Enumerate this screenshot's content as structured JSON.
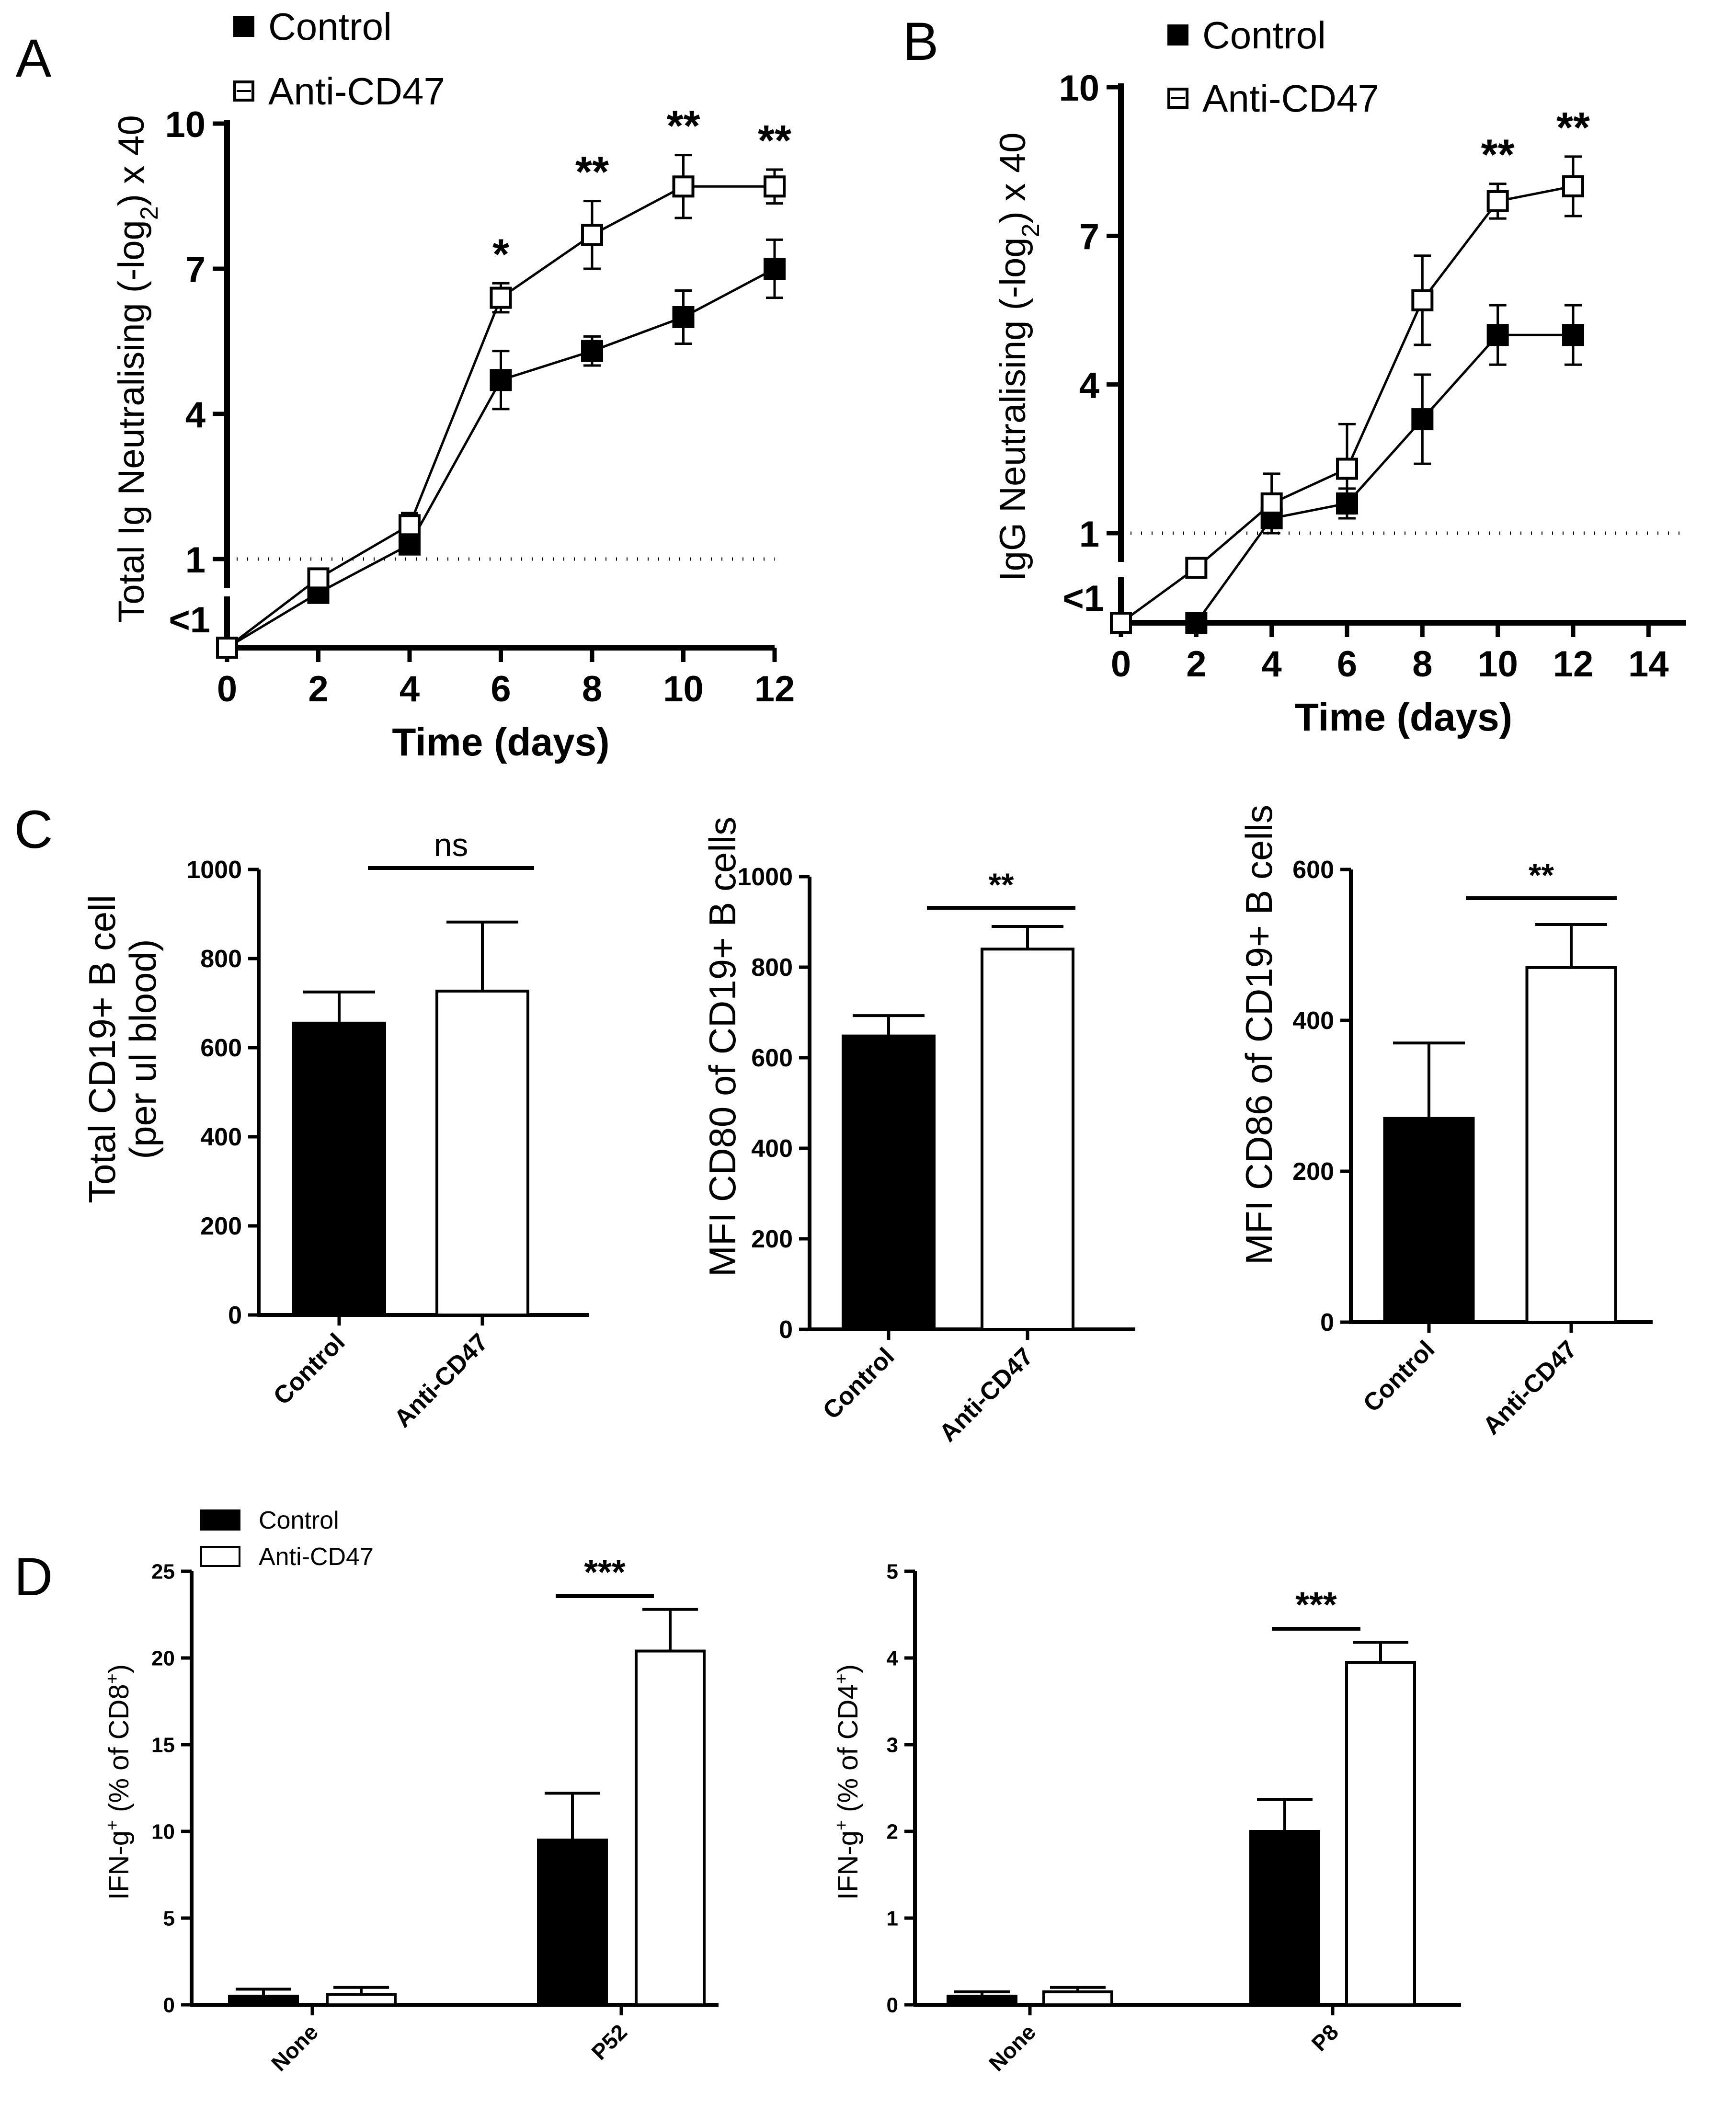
{
  "figure": {
    "panels": [
      {
        "id": "A",
        "label": "A"
      },
      {
        "id": "B",
        "label": "B"
      },
      {
        "id": "C",
        "label": "C"
      },
      {
        "id": "D",
        "label": "D"
      }
    ]
  },
  "colors": {
    "control": "#000000",
    "anti": "#ffffff",
    "stroke": "#000000"
  },
  "chart_data": [
    {
      "id": "A",
      "type": "line",
      "title": "",
      "xlabel": "Time (days)",
      "ylabel": "Total Ig Neutralising (-log2) x 40",
      "ylabel_parts": {
        "pre": "Total Ig Neutralising (-log",
        "sub": "2",
        "post": ") x 40"
      },
      "x_ticks": [
        0,
        2,
        4,
        6,
        8,
        10,
        12
      ],
      "xlim": [
        0,
        12
      ],
      "y_ticks": [
        1,
        4,
        7,
        10
      ],
      "y_tick_labels": [
        "1",
        "4",
        "7",
        "10"
      ],
      "ylim": [
        0.5,
        10
      ],
      "below_limit_label": "<1",
      "detection_limit": 1,
      "legend": [
        "Control",
        "Anti-CD47"
      ],
      "series": [
        {
          "name": "Control",
          "marker": "filled-square",
          "x": [
            0,
            2,
            4,
            6,
            8,
            10,
            12
          ],
          "y": [
            0,
            0.3,
            1.3,
            4.7,
            5.3,
            6.0,
            7.0
          ],
          "err": [
            0,
            0,
            0,
            0.6,
            0.3,
            0.55,
            0.6
          ]
        },
        {
          "name": "Anti-CD47",
          "marker": "open-square",
          "x": [
            0,
            2,
            4,
            6,
            8,
            10,
            12
          ],
          "y": [
            0,
            0.6,
            1.7,
            6.4,
            7.7,
            8.7,
            8.7
          ],
          "err": [
            0,
            0,
            0.25,
            0.3,
            0.7,
            0.65,
            0.35
          ]
        }
      ],
      "significance": [
        {
          "x": 6,
          "label": "*"
        },
        {
          "x": 8,
          "label": "**"
        },
        {
          "x": 10,
          "label": "**"
        },
        {
          "x": 12,
          "label": "**"
        }
      ]
    },
    {
      "id": "B",
      "type": "line",
      "title": "",
      "xlabel": "Time (days)",
      "ylabel": "IgG Neutralising (-log2) x 40",
      "ylabel_parts": {
        "pre": "IgG Neutralising (-log",
        "sub": "2",
        "post": ") x 40"
      },
      "x_ticks": [
        0,
        2,
        4,
        6,
        8,
        10,
        12,
        14
      ],
      "xlim": [
        0,
        15
      ],
      "y_ticks": [
        1,
        4,
        7,
        10
      ],
      "y_tick_labels": [
        "1",
        "4",
        "7",
        "10"
      ],
      "ylim": [
        0.5,
        10
      ],
      "below_limit_label": "<1",
      "detection_limit": 1,
      "legend": [
        "Control",
        "Anti-CD47"
      ],
      "series": [
        {
          "name": "Control",
          "marker": "filled-square",
          "x": [
            0,
            2,
            4,
            6,
            8,
            10,
            12
          ],
          "y": [
            0,
            0,
            1.3,
            1.6,
            3.3,
            5.0,
            5.0
          ],
          "err": [
            0,
            0,
            0,
            0.3,
            0.9,
            0.6,
            0.6
          ]
        },
        {
          "name": "Anti-CD47",
          "marker": "open-square",
          "x": [
            0,
            2,
            4,
            6,
            8,
            10,
            12
          ],
          "y": [
            0,
            0.3,
            1.6,
            2.3,
            5.7,
            7.7,
            8.0
          ],
          "err": [
            0,
            0,
            0.6,
            0.9,
            0.9,
            0.35,
            0.6
          ]
        }
      ],
      "significance": [
        {
          "x": 10,
          "label": "**"
        },
        {
          "x": 12,
          "label": "**"
        }
      ]
    },
    {
      "id": "C1",
      "type": "bar",
      "ylabel": "Total CD19+ B cell",
      "ylabel2": "(per ul blood)",
      "categories": [
        "Control",
        "Anti-CD47"
      ],
      "values": [
        655,
        727
      ],
      "err": [
        70,
        155
      ],
      "y_ticks": [
        0,
        200,
        400,
        600,
        800,
        1000
      ],
      "ylim": [
        0,
        1000
      ],
      "significance": "ns"
    },
    {
      "id": "C2",
      "type": "bar",
      "ylabel": "MFI CD80 of CD19+ B cells",
      "categories": [
        "Control",
        "Anti-CD47"
      ],
      "values": [
        648,
        840
      ],
      "err": [
        45,
        50
      ],
      "y_ticks": [
        0,
        200,
        400,
        600,
        800,
        1000
      ],
      "ylim": [
        0,
        1000
      ],
      "significance": "**"
    },
    {
      "id": "C3",
      "type": "bar",
      "ylabel": "MFI CD86 of CD19+ B cells",
      "categories": [
        "Control",
        "Anti-CD47"
      ],
      "values": [
        270,
        470
      ],
      "err": [
        100,
        57
      ],
      "y_ticks": [
        0,
        200,
        400,
        600
      ],
      "ylim": [
        0,
        600
      ],
      "significance": "**"
    },
    {
      "id": "D1",
      "type": "bar",
      "ylabel": "IFN-g+ (% of CD8+)",
      "ylabel_parts": {
        "pre": "IFN-g",
        "sup1": "+",
        "mid": " (% of CD8",
        "sup2": "+",
        "post": ")"
      },
      "categories": [
        "None",
        "P52"
      ],
      "series": [
        {
          "name": "Control",
          "values": [
            0.5,
            9.5
          ],
          "err": [
            0.4,
            2.7
          ]
        },
        {
          "name": "Anti-CD47",
          "values": [
            0.6,
            20.4
          ],
          "err": [
            0.4,
            2.4
          ]
        }
      ],
      "y_ticks": [
        0,
        5,
        10,
        15,
        20,
        25
      ],
      "ylim": [
        0,
        25
      ],
      "significance": "***",
      "legend": [
        "Control",
        "Anti-CD47"
      ]
    },
    {
      "id": "D2",
      "type": "bar",
      "ylabel": "IFN-g+ (% of CD4+)",
      "ylabel_parts": {
        "pre": "IFN-g",
        "sup1": "+",
        "mid": " (% of CD4",
        "sup2": "+",
        "post": ")"
      },
      "categories": [
        "None",
        "P8"
      ],
      "series": [
        {
          "name": "Control",
          "values": [
            0.1,
            2.0
          ],
          "err": [
            0.05,
            0.37
          ]
        },
        {
          "name": "Anti-CD47",
          "values": [
            0.15,
            3.95
          ],
          "err": [
            0.05,
            0.23
          ]
        }
      ],
      "y_ticks": [
        0,
        1,
        2,
        3,
        4,
        5
      ],
      "ylim": [
        0,
        5
      ],
      "significance": "***"
    }
  ]
}
